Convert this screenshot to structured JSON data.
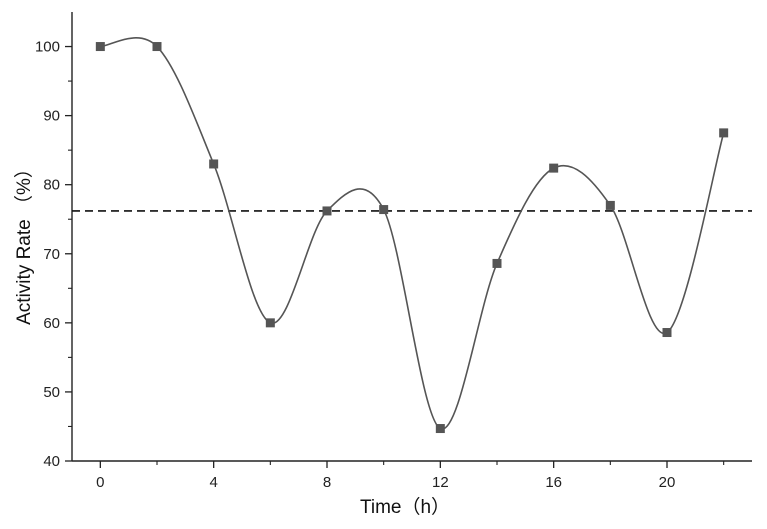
{
  "chart_data": {
    "type": "line",
    "title": "",
    "xlabel": "Time（h）",
    "ylabel": "Activity Rate （%）",
    "xlim": [
      -1,
      23
    ],
    "ylim": [
      40,
      105
    ],
    "x_ticks": [
      0,
      4,
      8,
      12,
      16,
      20
    ],
    "x_minor_ticks": [
      2,
      6,
      10,
      14,
      18,
      22
    ],
    "y_ticks": [
      40,
      50,
      60,
      70,
      80,
      90,
      100
    ],
    "x_tick_labels": [
      "0",
      "4",
      "8",
      "12",
      "16",
      "20"
    ],
    "y_tick_labels": [
      "40",
      "50",
      "60",
      "70",
      "80",
      "90",
      "100"
    ],
    "grid": false,
    "legend": "none",
    "series": [
      {
        "marker": "square",
        "smooth": true,
        "color": "#555555",
        "x": [
          0,
          2,
          4,
          6,
          8,
          10,
          12,
          14,
          16,
          18,
          20,
          22
        ],
        "y": [
          100,
          100,
          83,
          60,
          76.2,
          76.4,
          44.7,
          68.6,
          82.4,
          77,
          58.6,
          87.5
        ]
      }
    ],
    "reference_line": {
      "y": 76.2,
      "style": "dashed",
      "color": "#111111"
    }
  }
}
